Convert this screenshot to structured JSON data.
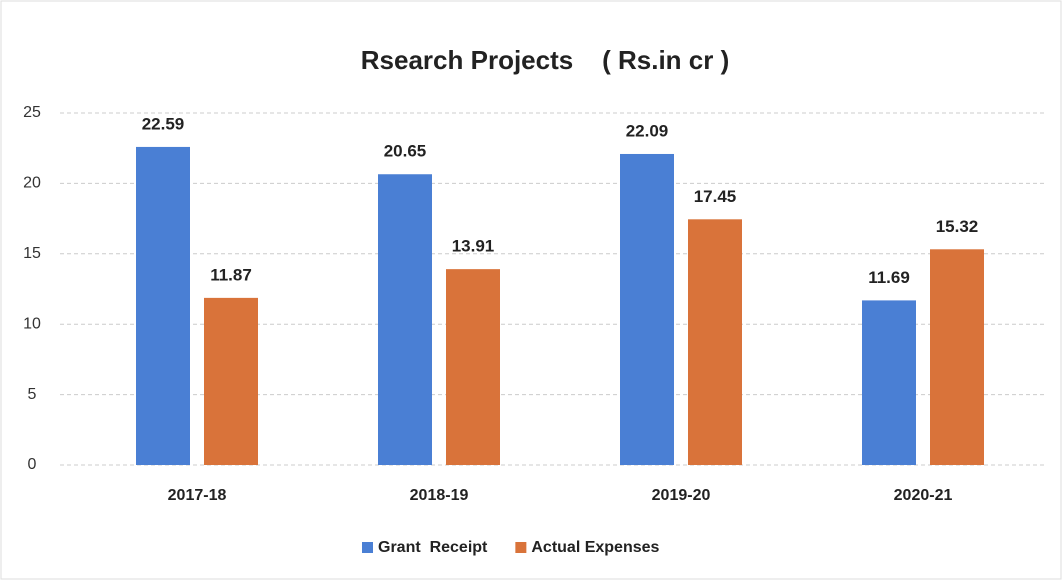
{
  "chart_data": {
    "type": "bar",
    "title": "Rsearch Projects    ( Rs.in cr )",
    "categories": [
      "2017-18",
      "2018-19",
      "2019-20",
      "2020-21"
    ],
    "series": [
      {
        "name": "Grant  Receipt",
        "color": "#4a7fd4",
        "values": [
          22.59,
          20.65,
          22.09,
          11.69
        ]
      },
      {
        "name": "Actual Expenses",
        "color": "#d9733a",
        "values": [
          11.87,
          13.91,
          17.45,
          15.32
        ]
      }
    ],
    "ylim": [
      0,
      25
    ],
    "yticks": [
      0,
      5,
      10,
      15,
      20,
      25
    ],
    "grid": true,
    "legend": "bottom"
  }
}
